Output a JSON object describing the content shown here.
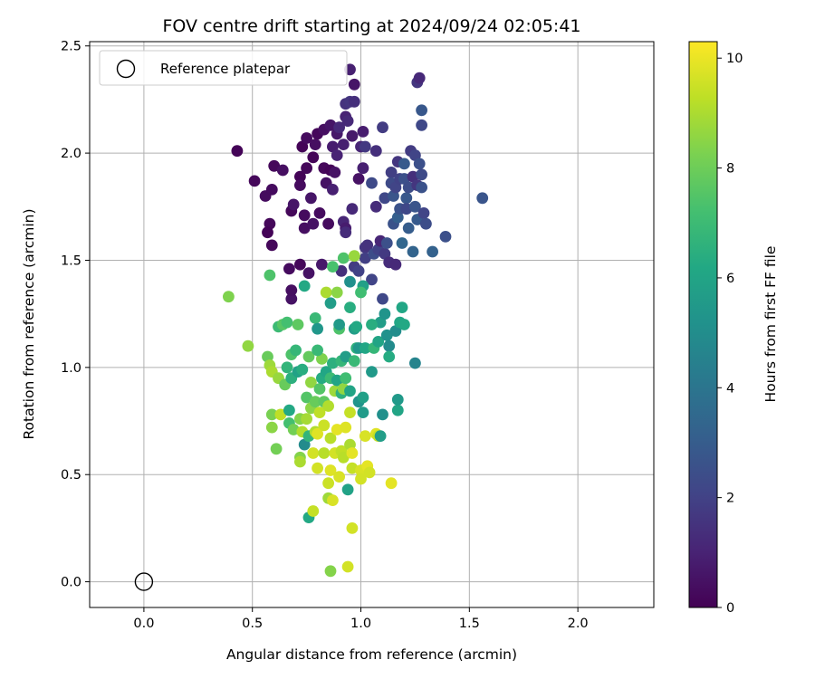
{
  "chart_data": {
    "type": "scatter",
    "title": "FOV centre drift starting at 2024/09/24 02:05:41",
    "xlabel": "Angular distance from reference (arcmin)",
    "ylabel": "Rotation from reference (arcmin)",
    "xlim": [
      -0.25,
      2.35
    ],
    "ylim": [
      -0.12,
      2.52
    ],
    "x_ticks": [
      "0.0",
      "0.5",
      "1.0",
      "1.5",
      "2.0"
    ],
    "y_ticks": [
      "0.0",
      "0.5",
      "1.0",
      "1.5",
      "2.0",
      "2.5"
    ],
    "grid": true,
    "legend": {
      "position": "upper-left",
      "entries": [
        "Reference platepar"
      ]
    },
    "colorbar": {
      "label": "Hours from first FF file",
      "range": [
        0,
        10.3
      ],
      "ticks": [
        "0",
        "2",
        "4",
        "6",
        "8",
        "10"
      ],
      "colormap": "viridis"
    },
    "reference_point": {
      "x": 0.0,
      "y": 0.0,
      "label": "Reference platepar"
    },
    "points": [
      [
        0.43,
        2.01,
        0.1
      ],
      [
        0.51,
        1.87,
        0.2
      ],
      [
        0.56,
        1.8,
        0.3
      ],
      [
        0.58,
        1.67,
        0.2
      ],
      [
        0.57,
        1.63,
        0.1
      ],
      [
        0.59,
        1.57,
        0.2
      ],
      [
        0.59,
        1.83,
        0.3
      ],
      [
        0.6,
        1.94,
        0.2
      ],
      [
        0.64,
        1.92,
        0.4
      ],
      [
        0.67,
        1.46,
        0.3
      ],
      [
        0.68,
        1.32,
        0.5
      ],
      [
        0.68,
        1.36,
        0.4
      ],
      [
        0.68,
        1.73,
        0.2
      ],
      [
        0.69,
        1.76,
        0.6
      ],
      [
        0.72,
        1.89,
        0.1
      ],
      [
        0.72,
        1.85,
        0.3
      ],
      [
        0.72,
        1.48,
        0.2
      ],
      [
        0.73,
        2.03,
        0.1
      ],
      [
        0.74,
        1.65,
        0.4
      ],
      [
        0.74,
        1.71,
        0.3
      ],
      [
        0.76,
        1.44,
        0.5
      ],
      [
        0.77,
        1.79,
        0.6
      ],
      [
        0.78,
        1.67,
        0.5
      ],
      [
        0.75,
        1.93,
        0.2
      ],
      [
        0.75,
        2.07,
        0.3
      ],
      [
        0.78,
        1.98,
        0.1
      ],
      [
        0.79,
        2.04,
        0.4
      ],
      [
        0.8,
        2.09,
        0.2
      ],
      [
        0.81,
        1.72,
        0.3
      ],
      [
        0.82,
        1.48,
        0.7
      ],
      [
        0.83,
        2.11,
        0.4
      ],
      [
        0.83,
        1.93,
        0.2
      ],
      [
        0.84,
        1.86,
        0.5
      ],
      [
        0.85,
        1.67,
        0.3
      ],
      [
        0.86,
        1.92,
        0.1
      ],
      [
        0.86,
        2.13,
        0.6
      ],
      [
        0.87,
        1.83,
        0.9
      ],
      [
        0.87,
        2.03,
        0.8
      ],
      [
        0.88,
        1.91,
        0.5
      ],
      [
        0.89,
        1.99,
        1.0
      ],
      [
        0.89,
        2.09,
        0.7
      ],
      [
        0.9,
        2.12,
        1.2
      ],
      [
        0.91,
        1.45,
        1.4
      ],
      [
        0.92,
        1.68,
        1.1
      ],
      [
        0.92,
        2.04,
        0.9
      ],
      [
        0.93,
        2.17,
        1.0
      ],
      [
        0.93,
        1.65,
        0.8
      ],
      [
        0.93,
        2.23,
        1.5
      ],
      [
        0.93,
        1.63,
        1.3
      ],
      [
        0.94,
        2.15,
        1.2
      ],
      [
        0.95,
        2.24,
        1.6
      ],
      [
        0.95,
        2.39,
        0.9
      ],
      [
        0.96,
        2.08,
        0.7
      ],
      [
        0.96,
        1.74,
        1.2
      ],
      [
        0.97,
        2.32,
        0.6
      ],
      [
        0.97,
        2.24,
        1.4
      ],
      [
        0.97,
        1.47,
        1.8
      ],
      [
        0.99,
        1.45,
        2.0
      ],
      [
        0.99,
        1.88,
        0.5
      ],
      [
        1.0,
        2.03,
        1.1
      ],
      [
        1.01,
        1.93,
        0.9
      ],
      [
        1.01,
        2.1,
        0.8
      ],
      [
        1.02,
        1.56,
        1.6
      ],
      [
        1.02,
        1.51,
        1.9
      ],
      [
        1.02,
        2.03,
        1.7
      ],
      [
        1.03,
        1.57,
        1.5
      ],
      [
        1.05,
        1.86,
        2.3
      ],
      [
        1.05,
        1.41,
        2.1
      ],
      [
        1.06,
        1.53,
        2.4
      ],
      [
        1.07,
        1.75,
        1.3
      ],
      [
        1.07,
        2.01,
        1.4
      ],
      [
        1.08,
        1.55,
        2.0
      ],
      [
        1.09,
        1.59,
        1.1
      ],
      [
        1.1,
        1.32,
        2.2
      ],
      [
        1.1,
        2.12,
        1.8
      ],
      [
        1.11,
        1.79,
        2.2
      ],
      [
        1.11,
        1.53,
        1.7
      ],
      [
        1.12,
        1.58,
        2.5
      ],
      [
        1.13,
        1.49,
        1.3
      ],
      [
        1.14,
        1.91,
        1.9
      ],
      [
        1.14,
        1.86,
        2.3
      ],
      [
        1.15,
        1.8,
        2.7
      ],
      [
        1.15,
        1.67,
        2.6
      ],
      [
        1.16,
        1.84,
        2.1
      ],
      [
        1.16,
        1.48,
        1.2
      ],
      [
        1.17,
        1.96,
        1.6
      ],
      [
        1.17,
        1.7,
        3.1
      ],
      [
        1.18,
        1.74,
        2.6
      ],
      [
        1.18,
        1.88,
        2.0
      ],
      [
        1.19,
        1.58,
        3.4
      ],
      [
        1.2,
        1.95,
        2.9
      ],
      [
        1.2,
        1.88,
        2.5
      ],
      [
        1.21,
        1.79,
        2.8
      ],
      [
        1.21,
        1.74,
        2.2
      ],
      [
        1.22,
        1.65,
        3.0
      ],
      [
        1.22,
        1.84,
        2.4
      ],
      [
        1.23,
        2.01,
        1.8
      ],
      [
        1.24,
        1.54,
        3.3
      ],
      [
        1.24,
        1.89,
        1.4
      ],
      [
        1.25,
        1.99,
        2.1
      ],
      [
        1.25,
        1.75,
        2.7
      ],
      [
        1.26,
        1.85,
        1.6
      ],
      [
        1.26,
        1.69,
        2.9
      ],
      [
        1.26,
        2.33,
        1.6
      ],
      [
        1.27,
        1.95,
        2.5
      ],
      [
        1.27,
        2.35,
        1.2
      ],
      [
        1.28,
        1.9,
        2.3
      ],
      [
        1.28,
        2.2,
        2.8
      ],
      [
        1.28,
        2.13,
        2.2
      ],
      [
        1.28,
        1.84,
        2.6
      ],
      [
        1.29,
        1.72,
        2.1
      ],
      [
        1.3,
        1.67,
        2.4
      ],
      [
        1.33,
        1.54,
        3.2
      ],
      [
        1.39,
        1.61,
        2.5
      ],
      [
        1.56,
        1.79,
        2.7
      ],
      [
        0.39,
        1.33,
        8.3
      ],
      [
        0.48,
        1.1,
        8.6
      ],
      [
        0.57,
        1.05,
        7.9
      ],
      [
        0.58,
        1.43,
        7.4
      ],
      [
        0.58,
        1.01,
        8.8
      ],
      [
        0.59,
        0.98,
        9.0
      ],
      [
        0.59,
        0.78,
        8.2
      ],
      [
        0.59,
        0.72,
        8.5
      ],
      [
        0.61,
        0.62,
        8.1
      ],
      [
        0.62,
        1.19,
        7.0
      ],
      [
        0.62,
        0.95,
        8.7
      ],
      [
        0.63,
        0.78,
        9.3
      ],
      [
        0.64,
        1.2,
        7.6
      ],
      [
        0.65,
        0.92,
        7.9
      ],
      [
        0.66,
        1.21,
        7.2
      ],
      [
        0.66,
        1.0,
        6.7
      ],
      [
        0.67,
        0.8,
        6.2
      ],
      [
        0.67,
        0.74,
        7.2
      ],
      [
        0.68,
        0.95,
        6.5
      ],
      [
        0.68,
        1.06,
        7.4
      ],
      [
        0.69,
        0.71,
        8.1
      ],
      [
        0.7,
        1.08,
        6.8
      ],
      [
        0.71,
        0.98,
        5.9
      ],
      [
        0.71,
        1.2,
        7.7
      ],
      [
        0.72,
        0.58,
        8.4
      ],
      [
        0.72,
        0.56,
        9.0
      ],
      [
        0.72,
        0.76,
        8.4
      ],
      [
        0.73,
        0.7,
        9.1
      ],
      [
        0.73,
        0.99,
        6.4
      ],
      [
        0.74,
        0.64,
        4.9
      ],
      [
        0.74,
        1.38,
        6.2
      ],
      [
        0.75,
        0.86,
        7.5
      ],
      [
        0.75,
        0.76,
        8.9
      ],
      [
        0.76,
        0.3,
        6.2
      ],
      [
        0.76,
        0.68,
        6.7
      ],
      [
        0.76,
        1.05,
        7.8
      ],
      [
        0.77,
        0.81,
        8.5
      ],
      [
        0.77,
        0.93,
        8.6
      ],
      [
        0.78,
        0.33,
        9.4
      ],
      [
        0.78,
        0.6,
        9.6
      ],
      [
        0.79,
        0.84,
        7.9
      ],
      [
        0.79,
        0.7,
        9.1
      ],
      [
        0.79,
        1.23,
        6.9
      ],
      [
        0.8,
        1.18,
        5.4
      ],
      [
        0.8,
        0.53,
        9.6
      ],
      [
        0.8,
        0.69,
        9.8
      ],
      [
        0.81,
        0.79,
        9.3
      ],
      [
        0.81,
        0.9,
        7.5
      ],
      [
        0.82,
        1.04,
        8.3
      ],
      [
        0.82,
        0.95,
        6.3
      ],
      [
        0.83,
        0.73,
        9.5
      ],
      [
        0.83,
        0.6,
        9.2
      ],
      [
        0.83,
        0.84,
        7.7
      ],
      [
        0.84,
        1.35,
        9.0
      ],
      [
        0.84,
        0.98,
        6.1
      ],
      [
        0.85,
        0.46,
        9.5
      ],
      [
        0.85,
        0.39,
        8.8
      ],
      [
        0.85,
        0.82,
        9.1
      ],
      [
        0.86,
        0.05,
        8.4
      ],
      [
        0.86,
        0.52,
        9.8
      ],
      [
        0.86,
        0.67,
        9.2
      ],
      [
        0.86,
        0.95,
        7.0
      ],
      [
        0.87,
        0.38,
        9.7
      ],
      [
        0.87,
        1.02,
        6.5
      ],
      [
        0.87,
        1.47,
        7.3
      ],
      [
        0.88,
        0.89,
        8.8
      ],
      [
        0.88,
        0.6,
        9.6
      ],
      [
        0.89,
        0.71,
        9.9
      ],
      [
        0.89,
        1.35,
        8.5
      ],
      [
        0.89,
        0.94,
        6.0
      ],
      [
        0.9,
        1.18,
        7.4
      ],
      [
        0.9,
        0.49,
        9.7
      ],
      [
        0.9,
        1.2,
        5.5
      ],
      [
        0.91,
        0.88,
        6.6
      ],
      [
        0.91,
        0.61,
        9.3
      ],
      [
        0.91,
        1.03,
        6.8
      ],
      [
        0.92,
        0.58,
        9.2
      ],
      [
        0.92,
        0.9,
        8.6
      ],
      [
        0.93,
        0.72,
        9.8
      ],
      [
        0.93,
        1.05,
        5.7
      ],
      [
        0.93,
        0.95,
        7.1
      ],
      [
        0.94,
        0.43,
        5.9
      ],
      [
        0.94,
        0.07,
        9.6
      ],
      [
        0.95,
        0.64,
        9.0
      ],
      [
        0.95,
        0.79,
        9.4
      ],
      [
        0.95,
        0.89,
        6.0
      ],
      [
        0.96,
        0.6,
        9.9
      ],
      [
        0.96,
        0.53,
        9.4
      ],
      [
        0.96,
        0.25,
        9.6
      ],
      [
        0.97,
        1.18,
        5.7
      ],
      [
        0.97,
        1.03,
        6.9
      ],
      [
        0.98,
        1.09,
        6.6
      ],
      [
        0.99,
        1.09,
        5.4
      ],
      [
        0.99,
        0.84,
        5.3
      ],
      [
        1.0,
        0.52,
        9.7
      ],
      [
        1.0,
        0.48,
        9.6
      ],
      [
        1.01,
        0.86,
        5.8
      ],
      [
        1.01,
        0.79,
        5.6
      ],
      [
        1.02,
        0.68,
        9.7
      ],
      [
        1.02,
        1.09,
        6.1
      ],
      [
        1.03,
        0.54,
        9.9
      ],
      [
        1.04,
        0.51,
        9.6
      ],
      [
        1.05,
        0.98,
        5.5
      ],
      [
        1.06,
        1.09,
        6.8
      ],
      [
        1.07,
        0.69,
        9.8
      ],
      [
        1.08,
        0.68,
        9.4
      ],
      [
        1.08,
        1.12,
        6.0
      ],
      [
        1.09,
        1.21,
        5.7
      ],
      [
        1.09,
        0.68,
        5.7
      ],
      [
        1.1,
        0.78,
        5.1
      ],
      [
        1.11,
        1.25,
        5.3
      ],
      [
        1.12,
        1.15,
        5.2
      ],
      [
        1.13,
        1.1,
        4.9
      ],
      [
        1.14,
        0.46,
        9.9
      ],
      [
        1.16,
        1.17,
        5.0
      ],
      [
        1.17,
        0.8,
        6.0
      ],
      [
        1.17,
        0.85,
        5.5
      ],
      [
        1.18,
        1.21,
        6.1
      ],
      [
        1.19,
        1.28,
        6.1
      ],
      [
        1.2,
        1.2,
        6.2
      ],
      [
        1.25,
        1.02,
        4.6
      ],
      [
        0.92,
        1.51,
        7.4
      ],
      [
        0.95,
        1.4,
        5.1
      ],
      [
        0.97,
        1.52,
        8.7
      ],
      [
        1.01,
        1.38,
        5.8
      ],
      [
        0.86,
        1.3,
        5.7
      ],
      [
        0.95,
        1.28,
        6.4
      ],
      [
        0.98,
        1.19,
        6.2
      ],
      [
        1.0,
        1.35,
        7.1
      ],
      [
        1.05,
        1.2,
        6.4
      ],
      [
        0.8,
        1.08,
        6.9
      ],
      [
        1.13,
        1.05,
        6.3
      ]
    ]
  }
}
